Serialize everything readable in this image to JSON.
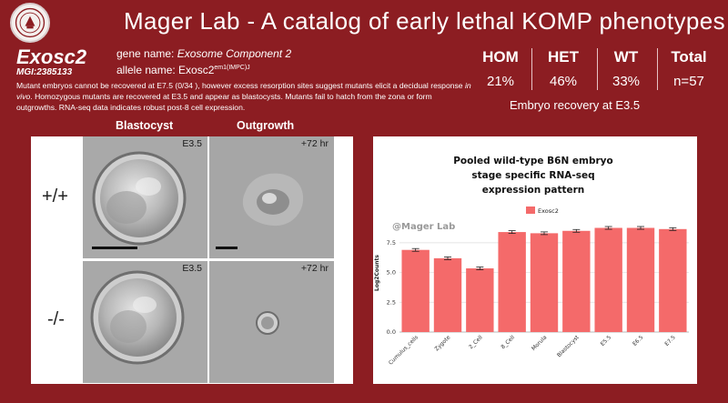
{
  "header": {
    "logo": "university-seal-logo",
    "title": "Mager Lab - A catalog of early lethal KOMP phenotypes"
  },
  "gene": {
    "symbol": "Exosc2",
    "mgi_id": "MGI:2385133",
    "gene_name_label": "gene name: ",
    "gene_name": "Exosome Component 2",
    "allele_label": "allele name: ",
    "allele_base": "Exosc2",
    "allele_superscript": "em1(IMPC)J",
    "description_part1": "Mutant embryos cannot be recovered at E7.5 (0/34 ), however excess resorption sites suggest mutants elicit a decidual response ",
    "description_italic": "in vivo",
    "description_part2": ". Homozygous mutants are recovered at E3.5 and appear as blastocysts. Mutants fail to hatch from the zona or form outgrowths. RNA-seq data indicates robust post-8 cell expression."
  },
  "stats": {
    "columns": [
      {
        "label": "HOM",
        "value": "21%"
      },
      {
        "label": "HET",
        "value": "46%"
      },
      {
        "label": "WT",
        "value": "33%"
      },
      {
        "label": "Total",
        "value": "n=57"
      }
    ],
    "caption": "Embryo recovery at E3.5"
  },
  "images": {
    "col_headers": [
      "Blastocyst",
      "Outgrowth"
    ],
    "row_labels": [
      "+/+",
      "-/-"
    ],
    "tiles": [
      {
        "label": "E3.5"
      },
      {
        "label": "+72 hr"
      },
      {
        "label": "E3.5"
      },
      {
        "label": "+72 hr"
      }
    ]
  },
  "chart_data": {
    "type": "bar",
    "title": [
      "Pooled wild-type B6N embryo",
      "stage specific RNA-seq",
      "expression pattern"
    ],
    "watermark": "@Mager Lab",
    "legend": [
      "Exosc2"
    ],
    "legend_position": "top",
    "ylabel": "Log2Counts",
    "xlabel": "",
    "ylim": [
      0,
      9.4
    ],
    "yticks": [
      0.0,
      2.5,
      5.0,
      7.5
    ],
    "ytick_labels": [
      "0.0",
      "2.5",
      "5.0",
      "7.5"
    ],
    "grid": true,
    "color": "#f46a6a",
    "categories": [
      "Cumulus_cells",
      "Zygote",
      "2_Cell",
      "8_Cell",
      "Morula",
      "Blastocyst",
      "E5.5",
      "E6.5",
      "E7.5"
    ],
    "series": [
      {
        "name": "Exosc2",
        "values": [
          6.9,
          6.2,
          5.35,
          8.4,
          8.3,
          8.5,
          8.75,
          8.75,
          8.65
        ]
      }
    ]
  }
}
